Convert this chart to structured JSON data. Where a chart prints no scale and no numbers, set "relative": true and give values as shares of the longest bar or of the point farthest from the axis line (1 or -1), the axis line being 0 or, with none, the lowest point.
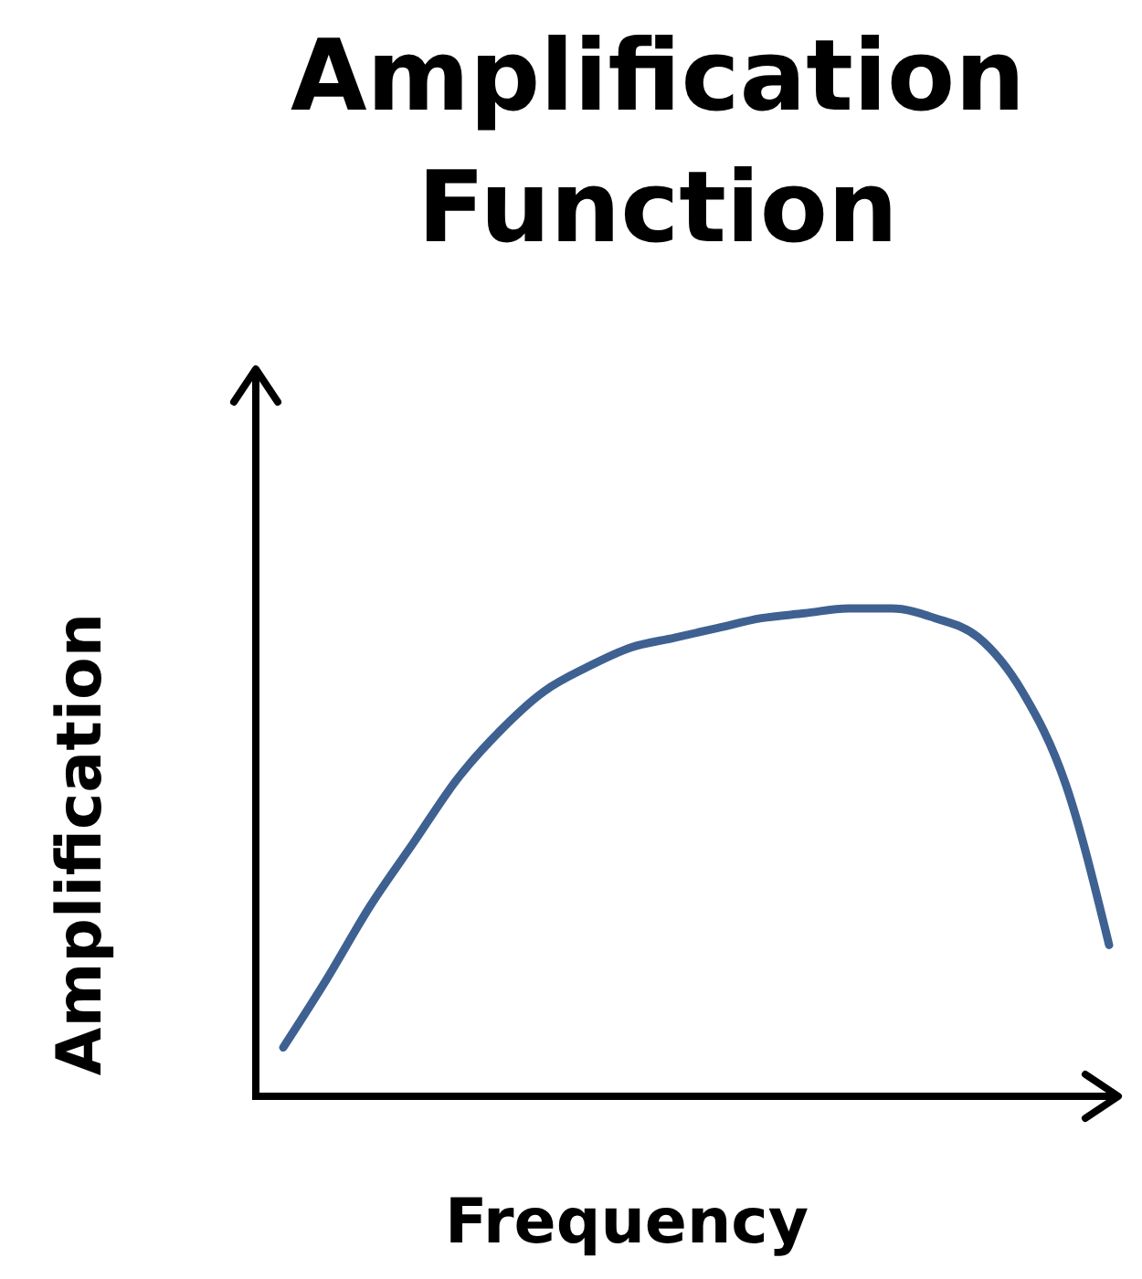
{
  "chart_data": {
    "type": "line",
    "title": "Amplification Function",
    "xlabel": "Frequency",
    "ylabel": "Amplification",
    "relative": true,
    "categories": [
      null,
      null,
      null,
      null,
      null,
      null,
      null,
      null,
      null,
      null,
      null,
      null,
      null,
      null,
      null,
      null,
      null,
      null,
      null,
      null
    ],
    "series": [
      {
        "color": "#3e6191",
        "values": [
          0.1,
          0.24,
          0.39,
          0.52,
          0.65,
          0.75,
          0.83,
          0.88,
          0.92,
          0.94,
          0.96,
          0.98,
          0.99,
          1.0,
          1.0,
          0.98,
          0.94,
          0.83,
          0.64,
          0.31
        ]
      }
    ],
    "marker": "none",
    "line_style": "solid"
  }
}
